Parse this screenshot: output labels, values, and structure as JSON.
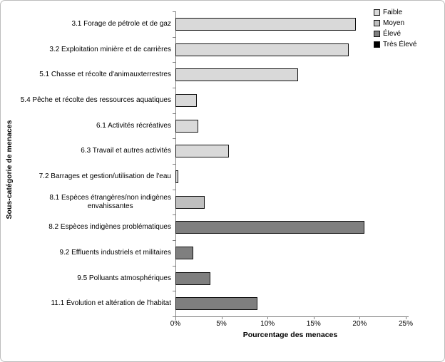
{
  "chart_data": {
    "type": "bar",
    "orientation": "horizontal",
    "title": "",
    "xlabel": "Pourcentage des menaces",
    "ylabel": "Sous-catégorie de menaces",
    "xlim": [
      0,
      25
    ],
    "x_ticks": [
      "0%",
      "5%",
      "10%",
      "15%",
      "20%",
      "25%"
    ],
    "grid": false,
    "legend_position": "top-right",
    "legend": [
      {
        "label": "Faible",
        "color": "#D9D9D9"
      },
      {
        "label": "Moyen",
        "color": "#BFBFBF"
      },
      {
        "label": "Élevé",
        "color": "#7F7F7F"
      },
      {
        "label": "Très Élevé",
        "color": "#000000"
      }
    ],
    "bars": [
      {
        "category": "3.1 Forage de pétrole et de gaz",
        "value": 19.6,
        "level": "Faible"
      },
      {
        "category": "3.2 Exploitation minière et de carrières",
        "value": 18.8,
        "level": "Faible"
      },
      {
        "category": "5.1 Chasse et récolte d'animauxterrestres",
        "value": 13.3,
        "level": "Faible"
      },
      {
        "category": "5.4 Pêche et récolte des ressources aquatiques",
        "value": 2.3,
        "level": "Faible"
      },
      {
        "category": "6.1 Activités récréatives",
        "value": 2.5,
        "level": "Faible"
      },
      {
        "category": "6.3 Travail et autres activités",
        "value": 5.8,
        "level": "Faible"
      },
      {
        "category": "7.2 Barrages et gestion/utilisation de l'eau",
        "value": 0.3,
        "level": "Faible"
      },
      {
        "category": "8.1 Espèces étrangères/non indigènes\nenvahissantes",
        "value": 3.2,
        "level": "Moyen"
      },
      {
        "category": "8.2 Espèces indigènes problématiques",
        "value": 20.5,
        "level": "Élevé"
      },
      {
        "category": "9.2 Effluents industriels et militaires",
        "value": 1.9,
        "level": "Élevé"
      },
      {
        "category": "9.5 Polluants atmosphériques",
        "value": 3.8,
        "level": "Élevé"
      },
      {
        "category": "11.1 Évolution et altération de l'habitat",
        "value": 8.9,
        "level": "Élevé"
      }
    ]
  }
}
